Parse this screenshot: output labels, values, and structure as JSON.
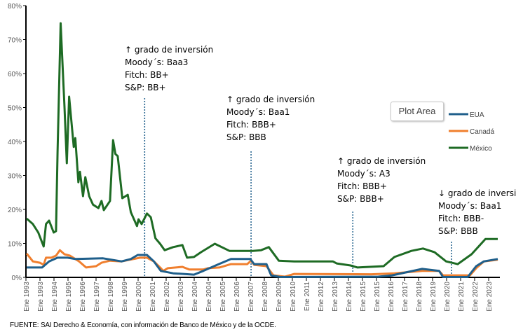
{
  "chart_data": {
    "type": "line",
    "title": "",
    "xlabel": "",
    "ylabel": "",
    "ylim": [
      0,
      80
    ],
    "yticks": [
      "0%",
      "10%",
      "20%",
      "30%",
      "40%",
      "50%",
      "60%",
      "70%",
      "80%"
    ],
    "xlim": [
      1993,
      2023.6
    ],
    "x_tick_labels": [
      "Ene 1993",
      "Ene 1993",
      "Ene 1994",
      "Ene 1995",
      "Ene 1996",
      "Ene 1997",
      "Ene 1998",
      "Ene 1999",
      "Ene 2000",
      "Ene 2001",
      "Ene 2002",
      "Ene 2003",
      "Ene 2004",
      "Ene 2004",
      "Ene 2005",
      "Ene 2006",
      "Ene 2007",
      "Ene 2008",
      "Ene 2009",
      "Ene 2010",
      "Ene 2011",
      "Ene 2012",
      "Ene 2013",
      "Ene 2014",
      "Ene 2015",
      "Ene 2015",
      "Ene 2016",
      "Ene 2017",
      "Ene 2018",
      "Ene 2019",
      "Ene 2020",
      "Ene 2021",
      "Ene 2022",
      "Ene 2023"
    ],
    "grid": false,
    "legend_position": "right",
    "series": [
      {
        "name": "EUA",
        "color": "#1f5f8b",
        "points": [
          [
            1993.05,
            2.9
          ],
          [
            1994.05,
            2.9
          ],
          [
            1994.5,
            4.7
          ],
          [
            1995.05,
            5.8
          ],
          [
            1995.7,
            5.8
          ],
          [
            1996.2,
            5.4
          ],
          [
            1998.0,
            5.6
          ],
          [
            1999.2,
            4.7
          ],
          [
            1999.8,
            5.4
          ],
          [
            2000.25,
            6.6
          ],
          [
            2000.85,
            6.6
          ],
          [
            2001.3,
            4.7
          ],
          [
            2001.75,
            1.9
          ],
          [
            2002.55,
            1.2
          ],
          [
            2003.9,
            0.8
          ],
          [
            2004.5,
            1.9
          ],
          [
            2005.4,
            3.7
          ],
          [
            2006.3,
            5.4
          ],
          [
            2007.55,
            5.4
          ],
          [
            2007.8,
            3.9
          ],
          [
            2008.6,
            3.9
          ],
          [
            2008.9,
            0.6
          ],
          [
            2009.5,
            0.1
          ],
          [
            2015.85,
            0.2
          ],
          [
            2016.75,
            0.6
          ],
          [
            2018.7,
            2.5
          ],
          [
            2019.8,
            1.9
          ],
          [
            2020.05,
            0.1
          ],
          [
            2021.65,
            0.1
          ],
          [
            2022.2,
            3.3
          ],
          [
            2022.7,
            4.7
          ],
          [
            2023.6,
            5.4
          ]
        ]
      },
      {
        "name": "Canadá",
        "color": "#f07f2e",
        "points": [
          [
            1993.05,
            7
          ],
          [
            1993.45,
            4.7
          ],
          [
            1993.9,
            4.3
          ],
          [
            1994.15,
            3.7
          ],
          [
            1994.3,
            5.8
          ],
          [
            1994.65,
            5.8
          ],
          [
            1994.95,
            6.4
          ],
          [
            1995.2,
            8
          ],
          [
            1995.5,
            6.8
          ],
          [
            1995.85,
            6.4
          ],
          [
            1996.45,
            4.7
          ],
          [
            1996.9,
            2.9
          ],
          [
            1997.55,
            3.3
          ],
          [
            1997.9,
            4.3
          ],
          [
            1998.45,
            4.9
          ],
          [
            1999.2,
            4.7
          ],
          [
            2000.4,
            5.8
          ],
          [
            2000.85,
            5.8
          ],
          [
            2001.3,
            4.7
          ],
          [
            2001.75,
            2.7
          ],
          [
            2001.9,
            1.9
          ],
          [
            2002.2,
            2.7
          ],
          [
            2003.15,
            3.1
          ],
          [
            2003.6,
            2.3
          ],
          [
            2004.5,
            2.3
          ],
          [
            2004.8,
            2.7
          ],
          [
            2005.55,
            2.9
          ],
          [
            2006.3,
            3.9
          ],
          [
            2007.35,
            3.9
          ],
          [
            2007.6,
            4.9
          ],
          [
            2007.8,
            3.7
          ],
          [
            2008.6,
            3.3
          ],
          [
            2009.05,
            0.6
          ],
          [
            2009.8,
            0.2
          ],
          [
            2010.4,
            1.0
          ],
          [
            2015.4,
            0.9
          ],
          [
            2016.9,
            1.2
          ],
          [
            2018.7,
            1.9
          ],
          [
            2019.8,
            1.9
          ],
          [
            2020.05,
            0.6
          ],
          [
            2021.8,
            0.6
          ],
          [
            2022.2,
            2.7
          ],
          [
            2022.7,
            4.7
          ],
          [
            2023.6,
            5.2
          ]
        ]
      },
      {
        "name": "México",
        "color": "#1e6b24",
        "points": [
          [
            1993.05,
            17.3
          ],
          [
            1993.45,
            15.7
          ],
          [
            1993.8,
            13.2
          ],
          [
            1994.15,
            9.1
          ],
          [
            1994.3,
            15.7
          ],
          [
            1994.5,
            16.7
          ],
          [
            1994.8,
            13.2
          ],
          [
            1994.95,
            13.6
          ],
          [
            1995.05,
            36.9
          ],
          [
            1995.25,
            74.8
          ],
          [
            1995.5,
            50.1
          ],
          [
            1995.65,
            33.6
          ],
          [
            1995.8,
            53.2
          ],
          [
            1996.1,
            38.4
          ],
          [
            1996.2,
            41
          ],
          [
            1996.4,
            28
          ],
          [
            1996.5,
            31.1
          ],
          [
            1996.7,
            23.9
          ],
          [
            1996.85,
            29.5
          ],
          [
            1997.1,
            23.9
          ],
          [
            1997.35,
            21.4
          ],
          [
            1997.7,
            20.4
          ],
          [
            1997.9,
            22.5
          ],
          [
            1998.05,
            19.8
          ],
          [
            1998.45,
            22.5
          ],
          [
            1998.65,
            40.4
          ],
          [
            1998.8,
            36.3
          ],
          [
            1998.95,
            35.7
          ],
          [
            1999.25,
            23.3
          ],
          [
            1999.6,
            24.3
          ],
          [
            1999.8,
            19.2
          ],
          [
            2000.2,
            15.1
          ],
          [
            2000.3,
            17.1
          ],
          [
            2000.5,
            15.7
          ],
          [
            2000.85,
            18.8
          ],
          [
            2001.1,
            17.7
          ],
          [
            2001.4,
            11.5
          ],
          [
            2001.7,
            9.9
          ],
          [
            2002.0,
            8
          ],
          [
            2002.55,
            8.9
          ],
          [
            2003.15,
            9.5
          ],
          [
            2003.45,
            5.8
          ],
          [
            2003.9,
            6
          ],
          [
            2004.35,
            7.4
          ],
          [
            2005.25,
            9.9
          ],
          [
            2006.2,
            7.8
          ],
          [
            2007.7,
            7.8
          ],
          [
            2008.25,
            8
          ],
          [
            2008.75,
            8.9
          ],
          [
            2009.4,
            4.9
          ],
          [
            2010.4,
            4.7
          ],
          [
            2012.9,
            4.7
          ],
          [
            2013.15,
            4.1
          ],
          [
            2014.05,
            3.5
          ],
          [
            2014.5,
            2.9
          ],
          [
            2016.2,
            3.3
          ],
          [
            2016.9,
            6
          ],
          [
            2018.0,
            7.8
          ],
          [
            2018.75,
            8.5
          ],
          [
            2019.5,
            7.4
          ],
          [
            2020.25,
            4.7
          ],
          [
            2021.0,
            3.9
          ],
          [
            2021.9,
            6.8
          ],
          [
            2022.8,
            11.3
          ],
          [
            2023.6,
            11.3
          ]
        ]
      }
    ],
    "annotations": [
      {
        "x": 2000.7,
        "lines": [
          "↑ grado de inversión",
          "Moody´s: Baa3",
          "Fitch: BB+",
          "S&P: BB+"
        ]
      },
      {
        "x": 2007.6,
        "lines": [
          "↑ grado de inversión",
          "Moody´s: Baa1",
          "Fitch: BBB+",
          "S&P: BBB"
        ]
      },
      {
        "x": 2014.2,
        "lines": [
          "↑ grado de inversión",
          "Moody´s: A3",
          "Fitch: BBB+",
          "S&P: BBB+"
        ]
      },
      {
        "x": 2020.6,
        "lines": [
          "↓ grado de inversión",
          "Moody´s: Baa1",
          "Fitch: BBB-",
          "S&P: BBB"
        ]
      }
    ],
    "source": "FUENTE: SAI Derecho & Economía, con información de Banco de México y de la OCDE."
  },
  "tooltip": "Plot Area"
}
